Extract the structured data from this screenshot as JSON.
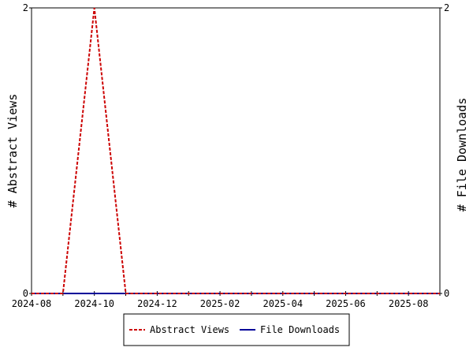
{
  "chart_data": {
    "type": "line",
    "x_tick_labels": [
      "2024-08",
      "2024-10",
      "2024-12",
      "2025-02",
      "2025-04",
      "2025-06",
      "2025-08"
    ],
    "x_range": [
      "2024-08",
      "2025-09"
    ],
    "ylabel_left": "# Abstract Views",
    "ylabel_right": "# File Downloads",
    "ylim_left": [
      0,
      2
    ],
    "ylim_right": [
      0,
      2
    ],
    "y_ticks_left": [
      "0",
      "2"
    ],
    "y_ticks_right": [
      "0",
      "2"
    ],
    "grid": false,
    "legend_position": "bottom-center",
    "series": [
      {
        "name": "Abstract Views",
        "axis": "left",
        "color": "#cc0000",
        "style": "dashed",
        "x": [
          "2024-08",
          "2024-09",
          "2024-10",
          "2024-11",
          "2024-12",
          "2025-01",
          "2025-02",
          "2025-03",
          "2025-04",
          "2025-05",
          "2025-06",
          "2025-07",
          "2025-08",
          "2025-09"
        ],
        "values": [
          0,
          0,
          2,
          0,
          0,
          0,
          0,
          0,
          0,
          0,
          0,
          0,
          0,
          0
        ]
      },
      {
        "name": "File Downloads",
        "axis": "right",
        "color": "#000099",
        "style": "solid",
        "x": [
          "2024-08",
          "2024-09",
          "2024-10",
          "2024-11",
          "2024-12",
          "2025-01",
          "2025-02",
          "2025-03",
          "2025-04",
          "2025-05",
          "2025-06",
          "2025-07",
          "2025-08",
          "2025-09"
        ],
        "values": [
          0,
          0,
          0,
          0,
          0,
          0,
          0,
          0,
          0,
          0,
          0,
          0,
          0,
          0
        ]
      }
    ]
  }
}
